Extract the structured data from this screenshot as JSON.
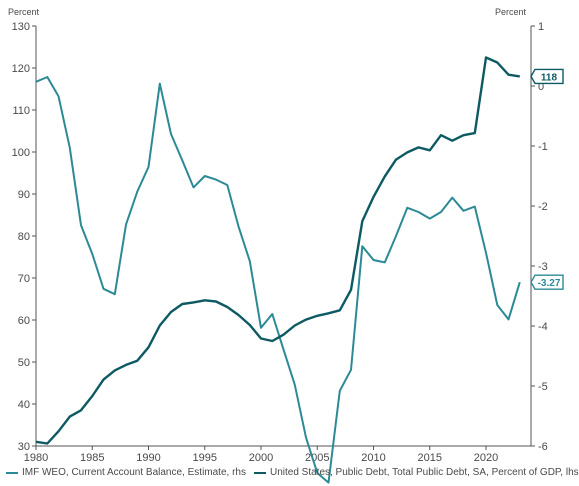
{
  "chart_data": {
    "type": "line",
    "left_axis_unit": "Percent",
    "right_axis_unit": "Percent",
    "x_ticks": [
      1980,
      1985,
      1990,
      1995,
      2000,
      2005,
      2010,
      2015,
      2020
    ],
    "xlim": [
      1980,
      2024
    ],
    "left_ylim": [
      30,
      130
    ],
    "left_ticks": [
      30,
      40,
      50,
      60,
      70,
      80,
      90,
      100,
      110,
      120,
      130
    ],
    "right_ylim": [
      -6,
      1
    ],
    "right_ticks": [
      1,
      0,
      -1,
      -2,
      -3,
      -4,
      -5,
      -6
    ],
    "grid": false,
    "legend_position": "bottom",
    "series": [
      {
        "name": "IMF WEO, Current Account Balance, Estimate, rhs",
        "axis": "right",
        "color": "#2b8a96",
        "end_label": "-3.27",
        "x": [
          1980,
          1981,
          1982,
          1983,
          1984,
          1985,
          1986,
          1987,
          1988,
          1989,
          1990,
          1991,
          1992,
          1993,
          1994,
          1995,
          1996,
          1997,
          1998,
          1999,
          2000,
          2001,
          2002,
          2003,
          2004,
          2005,
          2006,
          2007,
          2008,
          2009,
          2010,
          2011,
          2012,
          2013,
          2014,
          2015,
          2016,
          2017,
          2018,
          2019,
          2020,
          2021,
          2022,
          2023
        ],
        "values": [
          0.07,
          0.15,
          -0.17,
          -1.03,
          -2.32,
          -2.8,
          -3.38,
          -3.47,
          -2.31,
          -1.76,
          -1.35,
          0.04,
          -0.8,
          -1.24,
          -1.69,
          -1.5,
          -1.56,
          -1.65,
          -2.34,
          -2.92,
          -4.03,
          -3.8,
          -4.39,
          -4.98,
          -5.86,
          -6.45,
          -6.61,
          -5.08,
          -4.73,
          -2.67,
          -2.9,
          -2.94,
          -2.5,
          -2.03,
          -2.1,
          -2.21,
          -2.1,
          -1.86,
          -2.08,
          -2.01,
          -2.78,
          -3.65,
          -3.89,
          -3.27
        ]
      },
      {
        "name": "United States, Public Debt, Total Public Debt, SA, Percent of GDP, lhs",
        "axis": "left",
        "color": "#0d5a63",
        "end_label": "118",
        "x": [
          1980,
          1981,
          1982,
          1983,
          1984,
          1985,
          1986,
          1987,
          1988,
          1989,
          1990,
          1991,
          1992,
          1993,
          1994,
          1995,
          1996,
          1997,
          1998,
          1999,
          2000,
          2001,
          2002,
          2003,
          2004,
          2005,
          2006,
          2007,
          2008,
          2009,
          2010,
          2011,
          2012,
          2013,
          2014,
          2015,
          2016,
          2017,
          2018,
          2019,
          2020,
          2021,
          2022,
          2023
        ],
        "values": [
          31,
          30.6,
          33.5,
          37,
          38.5,
          41.9,
          45.8,
          48,
          49.3,
          50.3,
          53.5,
          58.7,
          61.9,
          63.8,
          64.2,
          64.7,
          64.4,
          63.1,
          61.2,
          58.8,
          55.6,
          55,
          56.5,
          58.7,
          60.1,
          61,
          61.6,
          62.3,
          67.2,
          83.5,
          89.3,
          94.2,
          98.2,
          99.9,
          101.1,
          100.4,
          104,
          102.7,
          104,
          104.5,
          122.5,
          121.3,
          118.4,
          118
        ]
      }
    ]
  }
}
